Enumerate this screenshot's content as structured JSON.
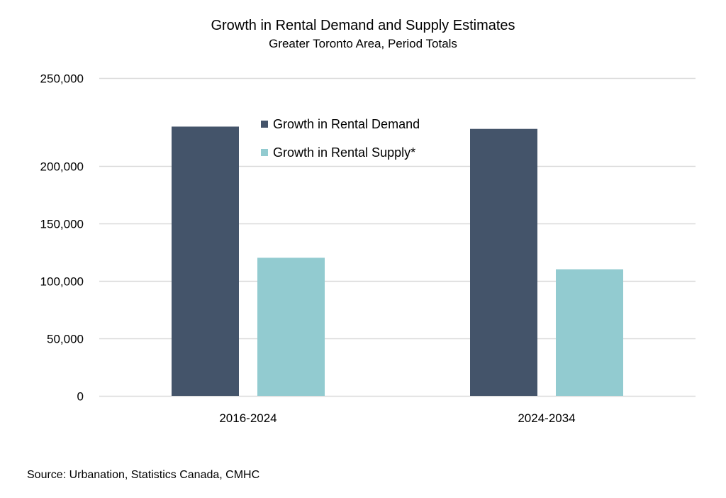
{
  "chart_data": {
    "type": "bar",
    "title": "Growth in Rental Demand and Supply Estimates",
    "subtitle": "Greater Toronto Area, Period Totals",
    "xlabel": "",
    "ylabel": "",
    "categories": [
      "2016-2024",
      "2024-2034"
    ],
    "series": [
      {
        "name": "Growth in Rental Demand",
        "color": "#44546a",
        "values": [
          234000,
          232000
        ]
      },
      {
        "name": "Growth in Rental Supply*",
        "color": "#92cbd0",
        "values": [
          120000,
          110000
        ]
      }
    ],
    "yticks": [
      0,
      50000,
      100000,
      150000,
      200000,
      250000
    ],
    "ytick_labels": [
      "0",
      "50,000",
      "100,000",
      "150,000",
      "200,000",
      "250,000"
    ],
    "ylim": [
      0,
      250000
    ],
    "grid": true,
    "gridline_color": "#d9d9d9",
    "legend_position": "top-center",
    "source": "Source: Urbanation, Statistics Canada, CMHC"
  }
}
